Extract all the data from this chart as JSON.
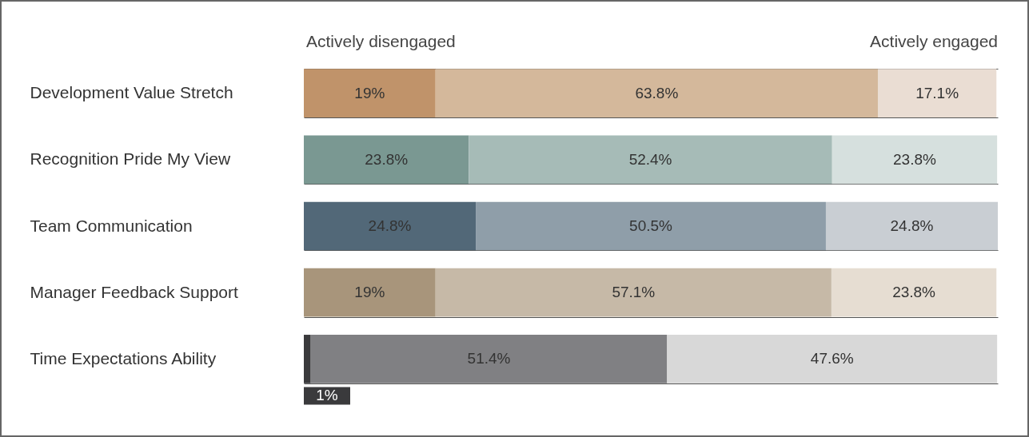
{
  "chart_data": {
    "type": "bar",
    "orientation": "horizontal",
    "stacked": true,
    "grid": "y",
    "categories": [
      "Development Value Stretch",
      "Recognition Pride My View",
      "Team Communication",
      "Manager Feedback Support",
      "Time Expectations Ability"
    ],
    "series": [
      {
        "colors": [
          "#c0936a",
          "#7a9892",
          "#526878",
          "#a8957b",
          "#3a3a3c"
        ],
        "values": [
          19,
          23.8,
          24.8,
          19,
          1
        ],
        "value_labels": [
          "19%",
          "23.8%",
          "24.8%",
          "19%",
          "1%"
        ]
      },
      {
        "colors": [
          "#d4b89b",
          "#a6bbb7",
          "#8f9ea9",
          "#c6b9a7",
          "#808083"
        ],
        "values": [
          63.8,
          52.4,
          50.5,
          57.1,
          51.4
        ],
        "value_labels": [
          "63.8%",
          "52.4%",
          "50.5%",
          "57.1%",
          "51.4%"
        ]
      },
      {
        "colors": [
          "#eaddd3",
          "#d6e0de",
          "#c9ced3",
          "#e6ddd2",
          "#d8d8d8"
        ],
        "values": [
          17.1,
          23.8,
          24.8,
          23.8,
          47.6
        ],
        "value_labels": [
          "17.1%",
          "23.8%",
          "24.8%",
          "23.8%",
          "47.6%"
        ]
      }
    ],
    "annotations": [
      "Actively disengaged",
      "Actively engaged"
    ]
  }
}
